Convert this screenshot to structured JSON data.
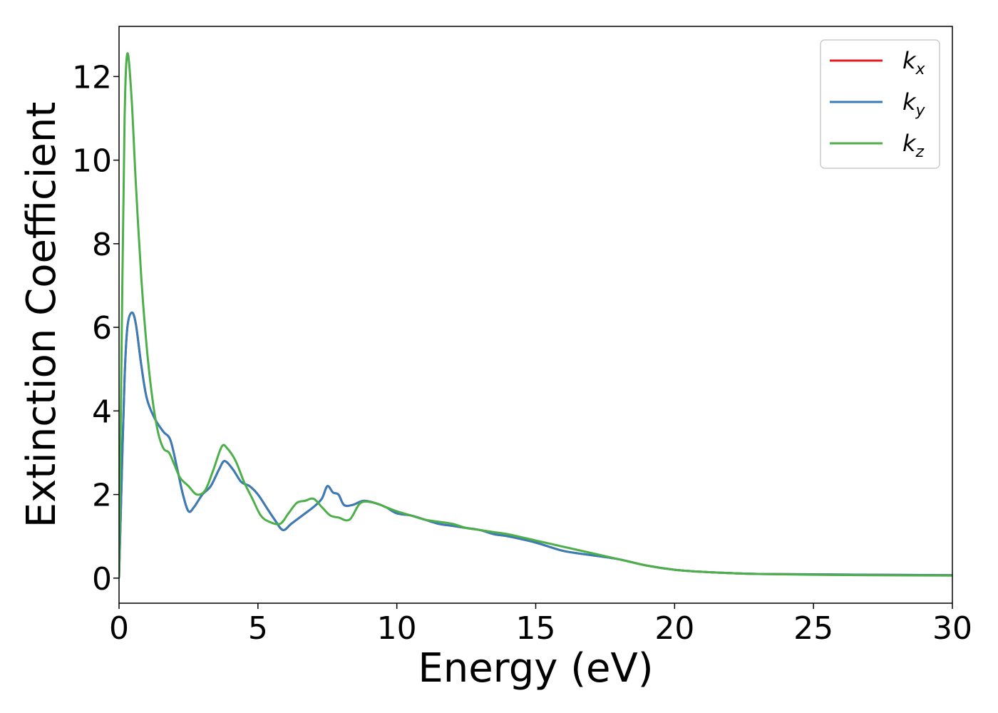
{
  "chart_data": {
    "type": "line",
    "title": "",
    "xlabel": "Energy (eV)",
    "ylabel": "Extinction Coefficient",
    "xlim": [
      0,
      30
    ],
    "ylim": [
      -0.6,
      13.2
    ],
    "xticks": [
      0,
      5,
      10,
      15,
      20,
      25,
      30
    ],
    "xtick_labels": [
      "0",
      "5",
      "10",
      "15",
      "20",
      "25",
      "30"
    ],
    "yticks": [
      0,
      2,
      4,
      6,
      8,
      10,
      12
    ],
    "ytick_labels": [
      "0",
      "2",
      "4",
      "6",
      "8",
      "10",
      "12"
    ],
    "grid": false,
    "legend_position": "top-right",
    "series": [
      {
        "name": "k",
        "subscript": "x",
        "color": "#e41a1c",
        "x": [
          0,
          0.1,
          0.2,
          0.3,
          0.45,
          0.6,
          0.8,
          1.0,
          1.3,
          1.6,
          1.85,
          2.1,
          2.3,
          2.5,
          2.7,
          3.0,
          3.3,
          3.6,
          3.8,
          4.1,
          4.4,
          4.7,
          5.0,
          5.3,
          5.6,
          5.9,
          6.2,
          6.6,
          7.0,
          7.3,
          7.5,
          7.7,
          7.9,
          8.1,
          8.4,
          8.8,
          9.2,
          9.6,
          10.0,
          10.5,
          11.0,
          11.5,
          12.0,
          12.5,
          13.0,
          13.5,
          14.0,
          15.0,
          16.0,
          17.0,
          18.0,
          19.0,
          20.0,
          21.0,
          22.0,
          23.0,
          25.0,
          27.0,
          30.0
        ],
        "values": [
          0,
          2.5,
          4.8,
          6.0,
          6.35,
          6.1,
          5.1,
          4.3,
          3.8,
          3.5,
          3.3,
          2.6,
          2.0,
          1.6,
          1.7,
          2.0,
          2.2,
          2.6,
          2.8,
          2.6,
          2.3,
          2.2,
          2.0,
          1.7,
          1.4,
          1.15,
          1.3,
          1.5,
          1.7,
          1.9,
          2.2,
          2.05,
          2.0,
          1.75,
          1.75,
          1.85,
          1.8,
          1.7,
          1.55,
          1.5,
          1.4,
          1.3,
          1.25,
          1.2,
          1.15,
          1.05,
          1.0,
          0.85,
          0.65,
          0.55,
          0.45,
          0.3,
          0.2,
          0.15,
          0.12,
          0.1,
          0.09,
          0.08,
          0.07
        ]
      },
      {
        "name": "k",
        "subscript": "y",
        "color": "#377eb8",
        "x": [
          0,
          0.1,
          0.2,
          0.3,
          0.45,
          0.6,
          0.8,
          1.0,
          1.3,
          1.6,
          1.85,
          2.1,
          2.3,
          2.5,
          2.7,
          3.0,
          3.3,
          3.6,
          3.8,
          4.1,
          4.4,
          4.7,
          5.0,
          5.3,
          5.6,
          5.9,
          6.2,
          6.6,
          7.0,
          7.3,
          7.5,
          7.7,
          7.9,
          8.1,
          8.4,
          8.8,
          9.2,
          9.6,
          10.0,
          10.5,
          11.0,
          11.5,
          12.0,
          12.5,
          13.0,
          13.5,
          14.0,
          15.0,
          16.0,
          17.0,
          18.0,
          19.0,
          20.0,
          21.0,
          22.0,
          23.0,
          25.0,
          27.0,
          30.0
        ],
        "values": [
          0,
          2.5,
          4.8,
          6.0,
          6.35,
          6.1,
          5.1,
          4.3,
          3.8,
          3.5,
          3.3,
          2.6,
          2.0,
          1.6,
          1.7,
          2.0,
          2.2,
          2.6,
          2.8,
          2.6,
          2.3,
          2.2,
          2.0,
          1.7,
          1.4,
          1.15,
          1.3,
          1.5,
          1.7,
          1.9,
          2.2,
          2.05,
          2.0,
          1.75,
          1.75,
          1.85,
          1.8,
          1.7,
          1.55,
          1.5,
          1.4,
          1.3,
          1.25,
          1.2,
          1.15,
          1.05,
          1.0,
          0.85,
          0.65,
          0.55,
          0.45,
          0.3,
          0.2,
          0.15,
          0.12,
          0.1,
          0.09,
          0.08,
          0.07
        ]
      },
      {
        "name": "k",
        "subscript": "z",
        "color": "#4daf4a",
        "x": [
          0,
          0.1,
          0.2,
          0.3,
          0.45,
          0.6,
          0.8,
          1.0,
          1.2,
          1.4,
          1.6,
          1.8,
          2.0,
          2.2,
          2.5,
          2.8,
          3.1,
          3.4,
          3.7,
          3.9,
          4.2,
          4.5,
          4.8,
          5.1,
          5.4,
          5.8,
          6.1,
          6.4,
          6.7,
          7.0,
          7.3,
          7.6,
          7.9,
          8.3,
          8.7,
          9.2,
          9.6,
          10.0,
          10.5,
          11.0,
          11.5,
          12.0,
          12.5,
          13.0,
          13.5,
          14.0,
          15.0,
          16.0,
          17.0,
          18.0,
          19.0,
          20.0,
          21.0,
          22.0,
          23.0,
          25.0,
          27.0,
          30.0
        ],
        "values": [
          0,
          6.0,
          11.0,
          12.55,
          11.5,
          9.5,
          7.2,
          5.5,
          4.3,
          3.5,
          3.1,
          3.0,
          2.7,
          2.4,
          2.2,
          2.0,
          2.1,
          2.6,
          3.15,
          3.1,
          2.8,
          2.3,
          1.9,
          1.5,
          1.35,
          1.3,
          1.55,
          1.8,
          1.85,
          1.9,
          1.7,
          1.5,
          1.45,
          1.4,
          1.8,
          1.8,
          1.7,
          1.6,
          1.5,
          1.4,
          1.35,
          1.3,
          1.2,
          1.15,
          1.1,
          1.05,
          0.9,
          0.75,
          0.6,
          0.45,
          0.3,
          0.2,
          0.15,
          0.12,
          0.1,
          0.08,
          0.07,
          0.06
        ]
      }
    ]
  }
}
